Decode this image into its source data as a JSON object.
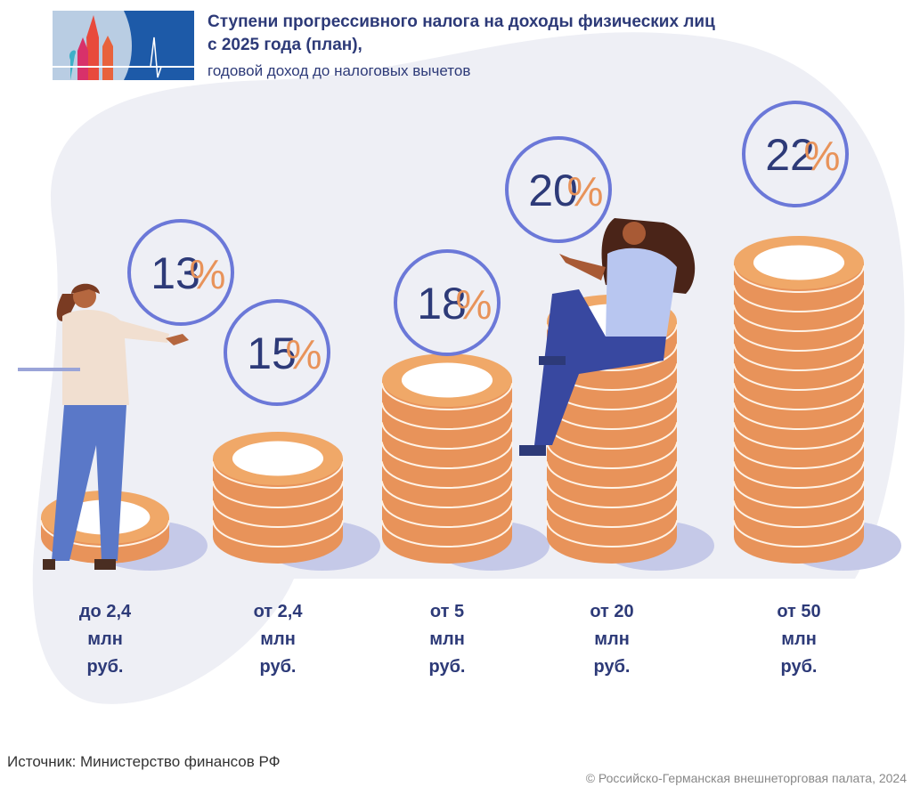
{
  "header": {
    "title_line1": "Ступени прогрессивного налога на доходы физических лиц",
    "title_line2": "с 2025 года (план),",
    "subtitle": "годовой доход до налоговых вычетов"
  },
  "chart_data": {
    "type": "bar",
    "title": "Ступени прогрессивного налога на доходы физических лиц с 2025 года (план), годовой доход до налоговых вычетов",
    "categories": [
      "до 2,4 млн руб.",
      "от 2,4 млн руб.",
      "от 5 млн руб.",
      "от 20 млн руб.",
      "от 50 млн руб."
    ],
    "values": [
      13,
      15,
      18,
      20,
      22
    ],
    "value_labels": [
      "13%",
      "15%",
      "18%",
      "20%",
      "22%"
    ],
    "unit": "%",
    "label_lines": [
      [
        "до 2,4",
        "млн",
        "руб."
      ],
      [
        "от 2,4",
        "млн",
        "руб."
      ],
      [
        "от 5",
        "млн",
        "руб."
      ],
      [
        "от 20",
        "млн",
        "руб."
      ],
      [
        "от 50",
        "млн",
        "руб."
      ]
    ]
  },
  "colors": {
    "navy": "#2d3a78",
    "circle": "#6b78d8",
    "coin": "#f0a868",
    "coin_dark": "#e8935a",
    "background": "#eeeff5"
  },
  "footer": {
    "source": "Источник: Министерство финансов РФ",
    "copyright": "© Российско-Германская внешнеторговая палата, 2024"
  }
}
